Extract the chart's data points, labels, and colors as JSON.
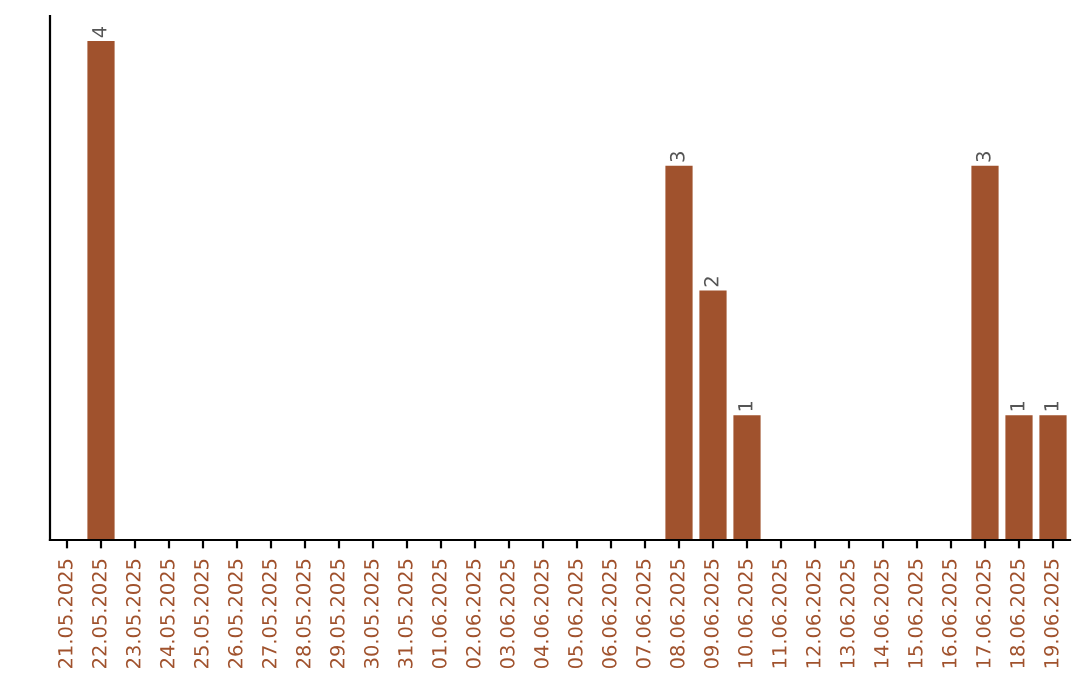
{
  "chart_data": {
    "type": "bar",
    "categories": [
      "21.05.2025",
      "22.05.2025",
      "23.05.2025",
      "24.05.2025",
      "25.05.2025",
      "26.05.2025",
      "27.05.2025",
      "28.05.2025",
      "29.05.2025",
      "30.05.2025",
      "31.05.2025",
      "01.06.2025",
      "02.06.2025",
      "03.06.2025",
      "04.06.2025",
      "05.06.2025",
      "06.06.2025",
      "07.06.2025",
      "08.06.2025",
      "09.06.2025",
      "10.06.2025",
      "11.06.2025",
      "12.06.2025",
      "13.06.2025",
      "14.06.2025",
      "15.06.2025",
      "16.06.2025",
      "17.06.2025",
      "18.06.2025",
      "19.06.2025"
    ],
    "values": [
      0,
      4,
      0,
      0,
      0,
      0,
      0,
      0,
      0,
      0,
      0,
      0,
      0,
      0,
      0,
      0,
      0,
      0,
      3,
      2,
      1,
      0,
      0,
      0,
      0,
      0,
      0,
      3,
      1,
      1
    ],
    "value_labels": [
      null,
      "4",
      null,
      null,
      null,
      null,
      null,
      null,
      null,
      null,
      null,
      null,
      null,
      null,
      null,
      null,
      null,
      null,
      "3",
      "2",
      "1",
      null,
      null,
      null,
      null,
      null,
      null,
      "3",
      "1",
      "1"
    ],
    "color": "#a0522d",
    "ylim": [
      0,
      4.2
    ],
    "tick_labels": "x",
    "grid": false,
    "legend": false
  }
}
